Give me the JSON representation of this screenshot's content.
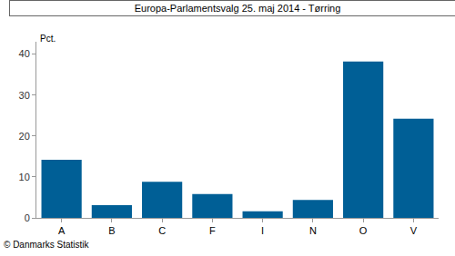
{
  "chart_data": {
    "type": "bar",
    "title": "Europa-Parlamentsvalg 25. maj 2014 - Tørring",
    "ylabel": "Pct.",
    "categories": [
      "A",
      "B",
      "C",
      "F",
      "I",
      "N",
      "O",
      "V"
    ],
    "values": [
      14.2,
      3.1,
      8.8,
      5.8,
      1.6,
      4.4,
      38.2,
      24.2
    ],
    "color": "#005f96",
    "ylim": [
      0,
      43
    ],
    "yticks": [
      0,
      10,
      20,
      30,
      40
    ],
    "grid": false,
    "annotations": [
      "© Danmarks Statistik"
    ]
  }
}
